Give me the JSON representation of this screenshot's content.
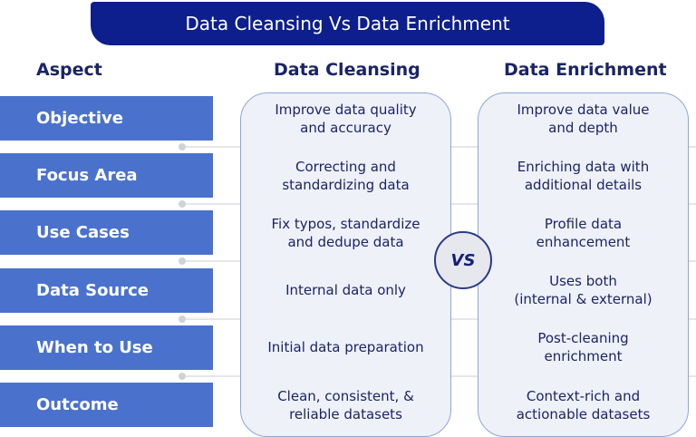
{
  "title": "Data Cleansing Vs Data Enrichment",
  "headers": {
    "aspect": "Aspect",
    "cleansing": "Data Cleansing",
    "enrichment": "Data Enrichment"
  },
  "vs_label": "VS",
  "rows": [
    {
      "aspect": "Objective",
      "cleansing": "Improve data quality\nand accuracy",
      "enrichment": "Improve data value\nand depth"
    },
    {
      "aspect": "Focus Area",
      "cleansing": "Correcting and\nstandardizing data",
      "enrichment": "Enriching data with\nadditional details"
    },
    {
      "aspect": "Use Cases",
      "cleansing": "Fix typos, standardize\nand dedupe data",
      "enrichment": "Profile data\nenhancement"
    },
    {
      "aspect": "Data Source",
      "cleansing": "Internal data only",
      "enrichment": "Uses both\n(internal & external)"
    },
    {
      "aspect": "When to Use",
      "cleansing": "Initial data preparation",
      "enrichment": "Post-cleaning\nenrichment"
    },
    {
      "aspect": "Outcome",
      "cleansing": "Clean, consistent, &\nreliable datasets",
      "enrichment": "Context-rich and\nactionable datasets"
    }
  ],
  "colors": {
    "banner": "#0d1f8c",
    "aspect_box": "#4a72cc",
    "column_fill": "#eef1f8",
    "column_border": "#8fa6d8",
    "text": "#1c2466"
  }
}
